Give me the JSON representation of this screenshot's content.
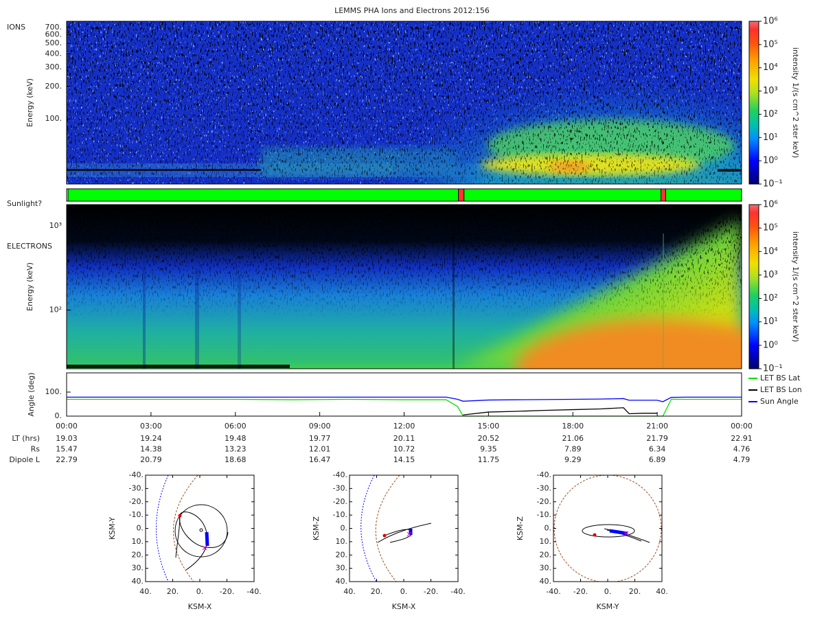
{
  "title": "LEMMS PHA Ions and Electrons  2012:156",
  "chart_data": [
    {
      "type": "heatmap",
      "label": "IONS",
      "ylabel": "Energy (keV)",
      "ylog": true,
      "ylim": [
        25,
        800
      ],
      "yticks": [
        {
          "value": 700,
          "label": "700."
        },
        {
          "value": 600,
          "label": "600."
        },
        {
          "value": 500,
          "label": "500."
        },
        {
          "value": 400,
          "label": "400."
        },
        {
          "value": 300,
          "label": "300."
        },
        {
          "value": 200,
          "label": "200."
        },
        {
          "value": 100,
          "label": "100."
        }
      ],
      "colorbar": {
        "label": "intensity 1/(s cm^2 ster keV)",
        "log": true,
        "lim": [
          0.1,
          1000000
        ],
        "ticks": [
          {
            "value": 0.1,
            "label": "10⁻¹"
          },
          {
            "value": 1,
            "label": "10⁰"
          },
          {
            "value": 10,
            "label": "10¹"
          },
          {
            "value": 100,
            "label": "10²"
          },
          {
            "value": 1000,
            "label": "10³"
          },
          {
            "value": 10000,
            "label": "10⁴"
          },
          {
            "value": 100000,
            "label": "10⁵"
          },
          {
            "value": 1000000,
            "label": "10⁶"
          }
        ]
      }
    },
    {
      "type": "timeline",
      "label": "Sunlight?",
      "xlim": [
        0,
        24
      ],
      "color": "#00ff00",
      "interval_color": "#ff3333",
      "intervals": [
        [
          13.93,
          14.13
        ],
        [
          21.13,
          21.3
        ]
      ]
    },
    {
      "type": "heatmap",
      "label": "ELECTRONS",
      "ylabel": "Energy (keV)",
      "ylog": true,
      "ylim": [
        20,
        1800
      ],
      "yticks": [
        {
          "value": 100,
          "label": "10²"
        },
        {
          "value": 1000,
          "label": "10³"
        }
      ],
      "colorbar": {
        "label": "intensity 1/(s cm^2 ster keV)",
        "log": true,
        "lim": [
          0.1,
          1000000
        ],
        "ticks": [
          {
            "value": 0.1,
            "label": "10⁻¹"
          },
          {
            "value": 1,
            "label": "10⁰"
          },
          {
            "value": 10,
            "label": "10¹"
          },
          {
            "value": 100,
            "label": "10²"
          },
          {
            "value": 1000,
            "label": "10³"
          },
          {
            "value": 10000,
            "label": "10⁴"
          },
          {
            "value": 100000,
            "label": "10⁵"
          },
          {
            "value": 1000000,
            "label": "10⁶"
          }
        ]
      }
    },
    {
      "type": "line",
      "ylabel": "Angle (deg)",
      "xlim": [
        0,
        24
      ],
      "ylim": [
        0,
        180
      ],
      "yticks": [
        {
          "value": 0,
          "label": "0."
        },
        {
          "value": 100,
          "label": "100."
        }
      ],
      "xticks": [
        {
          "value": 0,
          "label": "00:00"
        },
        {
          "value": 3,
          "label": "03:00"
        },
        {
          "value": 6,
          "label": "06:00"
        },
        {
          "value": 9,
          "label": "09:00"
        },
        {
          "value": 12,
          "label": "12:00"
        },
        {
          "value": 15,
          "label": "15:00"
        },
        {
          "value": 18,
          "label": "18:00"
        },
        {
          "value": 21,
          "label": "21:00"
        },
        {
          "value": 24,
          "label": "00:00"
        }
      ],
      "x": [
        0,
        2,
        4,
        6,
        8,
        10,
        12,
        13.5,
        13.9,
        14.1,
        15,
        16,
        17,
        18,
        19,
        19.8,
        20,
        20.5,
        21,
        21.2,
        21.5,
        22,
        23,
        24
      ],
      "series": [
        {
          "name": "LET BS Lat",
          "color": "#00e000",
          "values": [
            70,
            70,
            70,
            70,
            68,
            70,
            68,
            68,
            40,
            0,
            0,
            0,
            0,
            0,
            0,
            0,
            0,
            0,
            0,
            0,
            70,
            70,
            70,
            70
          ]
        },
        {
          "name": "LET BS Lon",
          "color": "#000000",
          "values": [
            null,
            null,
            null,
            null,
            null,
            null,
            null,
            null,
            null,
            5,
            17,
            20,
            24,
            27,
            30,
            35,
            10,
            12,
            12,
            null,
            null,
            null,
            null,
            null
          ]
        },
        {
          "name": "Sun Angle",
          "color": "#0000ff",
          "values": [
            79,
            79,
            79,
            79,
            79,
            79,
            79,
            79,
            70,
            62,
            67,
            68,
            69,
            70,
            71,
            73,
            66,
            66,
            66,
            60,
            78,
            79,
            79,
            79
          ]
        }
      ]
    },
    {
      "type": "orbit",
      "xlabel": "KSM-X",
      "ylabel": "KSM-Y",
      "xlim": [
        40,
        -40
      ],
      "ylim": [
        40,
        -40
      ],
      "xticks": [
        {
          "value": 40,
          "label": "40."
        },
        {
          "value": 20,
          "label": "20."
        },
        {
          "value": 0,
          "label": "0."
        },
        {
          "value": -20,
          "label": "-20."
        },
        {
          "value": -40,
          "label": "-40."
        }
      ],
      "yticks": [
        {
          "value": -40,
          "label": "-40."
        },
        {
          "value": -30,
          "label": "-30."
        },
        {
          "value": -20,
          "label": "-20."
        },
        {
          "value": -10,
          "label": "-10."
        },
        {
          "value": 0,
          "label": "0."
        },
        {
          "value": 10,
          "label": "10."
        },
        {
          "value": 20,
          "label": "20."
        },
        {
          "value": 30,
          "label": "30."
        },
        {
          "value": 40,
          "label": "40."
        }
      ]
    },
    {
      "type": "orbit",
      "xlabel": "KSM-X",
      "ylabel": "KSM-Z",
      "xlim": [
        40,
        -40
      ],
      "ylim": [
        40,
        -40
      ],
      "xticks": [
        {
          "value": 40,
          "label": "40."
        },
        {
          "value": 20,
          "label": "20."
        },
        {
          "value": 0,
          "label": "0."
        },
        {
          "value": -20,
          "label": "-20."
        },
        {
          "value": -40,
          "label": "-40."
        }
      ],
      "yticks": [
        {
          "value": -40,
          "label": "-40."
        },
        {
          "value": -30,
          "label": "-30."
        },
        {
          "value": -20,
          "label": "-20."
        },
        {
          "value": -10,
          "label": "-10."
        },
        {
          "value": 0,
          "label": "0."
        },
        {
          "value": 10,
          "label": "10."
        },
        {
          "value": 20,
          "label": "20."
        },
        {
          "value": 30,
          "label": "30."
        },
        {
          "value": 40,
          "label": "40."
        }
      ]
    },
    {
      "type": "orbit",
      "xlabel": "KSM-Y",
      "ylabel": "KSM-Z",
      "xlim": [
        -40,
        40
      ],
      "ylim": [
        40,
        -40
      ],
      "xticks": [
        {
          "value": -40,
          "label": "-40."
        },
        {
          "value": -20,
          "label": "-20."
        },
        {
          "value": 0,
          "label": "0."
        },
        {
          "value": 20,
          "label": "20."
        },
        {
          "value": 40,
          "label": "40."
        }
      ],
      "yticks": [
        {
          "value": -40,
          "label": "-40."
        },
        {
          "value": -30,
          "label": "-30."
        },
        {
          "value": -20,
          "label": "-20."
        },
        {
          "value": -10,
          "label": "-10."
        },
        {
          "value": 0,
          "label": "0."
        },
        {
          "value": 10,
          "label": "10."
        },
        {
          "value": 20,
          "label": "20."
        },
        {
          "value": 30,
          "label": "30."
        },
        {
          "value": 40,
          "label": "40."
        }
      ]
    }
  ],
  "ephemeris": {
    "rows": [
      {
        "label": "LT (hrs)",
        "values": [
          19.03,
          19.24,
          19.48,
          19.77,
          20.11,
          20.52,
          21.06,
          21.79,
          22.91
        ]
      },
      {
        "label": "Rs",
        "values": [
          15.47,
          14.38,
          13.23,
          12.01,
          10.72,
          9.35,
          7.89,
          6.34,
          4.76
        ]
      },
      {
        "label": "Dipole L",
        "values": [
          22.79,
          20.79,
          18.68,
          16.47,
          14.15,
          11.75,
          9.29,
          6.89,
          4.79
        ]
      }
    ]
  }
}
